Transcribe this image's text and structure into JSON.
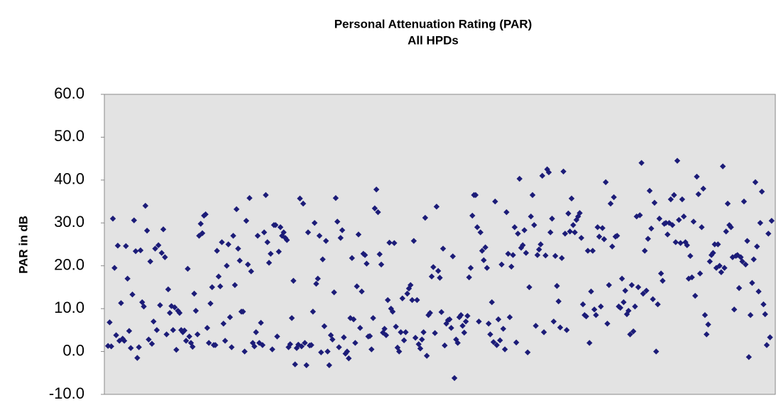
{
  "chart_data": {
    "type": "scatter",
    "title": "Personal Attenuation Rating (PAR)",
    "subtitle": "All HPDs",
    "ylabel": "PAR in dB",
    "color": "#1c1c78",
    "ylim": [
      -10,
      60
    ],
    "yticks": [
      {
        "value": -10,
        "label": "-10.0"
      },
      {
        "value": 0,
        "label": "0.0"
      },
      {
        "value": 10,
        "label": "10.0"
      },
      {
        "value": 20,
        "label": "20.0"
      },
      {
        "value": 30,
        "label": "30.0"
      },
      {
        "value": 40,
        "label": "40.0"
      },
      {
        "value": 50,
        "label": "50.0"
      },
      {
        "value": 60,
        "label": "60.0"
      }
    ],
    "values": [
      1.3,
      6.8,
      1.2,
      31,
      19.5,
      3.8,
      24.7,
      2.5,
      11.3,
      3,
      2.5,
      24.6,
      17,
      4.8,
      0.8,
      13.3,
      30.6,
      23.4,
      -1.5,
      1,
      23.6,
      11.5,
      10.5,
      34,
      28.2,
      2.8,
      21,
      1.8,
      7,
      24,
      5,
      24.8,
      10.8,
      23,
      28.5,
      22,
      4,
      14.5,
      9,
      10.6,
      5,
      10.3,
      0.4,
      9.5,
      9,
      5,
      4.5,
      4.9,
      2.5,
      19.3,
      3.5,
      2,
      1.1,
      13.5,
      9.5,
      4,
      27,
      29.8,
      27.6,
      31.7,
      32,
      5.5,
      2,
      11.2,
      15,
      1.5,
      1.5,
      23.5,
      17.5,
      15.2,
      25.5,
      6.5,
      2.5,
      20,
      25,
      8,
      1,
      27,
      15.5,
      33.2,
      24,
      21.2,
      9.3,
      9.3,
      0,
      30.5,
      20.3,
      35.8,
      18.7,
      2,
      1.2,
      4.5,
      27,
      2,
      6.7,
      1.5,
      27.8,
      36.5,
      25.5,
      20.7,
      22.8,
      0.5,
      29.5,
      29.5,
      3.5,
      23.3,
      29,
      27,
      27.8,
      26.5,
      26,
      1,
      1.7,
      7.8,
      16.5,
      -3,
      0.8,
      1.6,
      35.7,
      1.2,
      34.5,
      2,
      -3.2,
      27.8,
      1.4,
      1.5,
      9.3,
      30,
      15.8,
      17,
      27,
      -0.2,
      21.5,
      5.9,
      25.8,
      0,
      -3.2,
      3.8,
      2.8,
      13.8,
      35.8,
      30.3,
      1,
      26.5,
      28.3,
      3.3,
      -0.5,
      0,
      -1.6,
      7.8,
      21.8,
      7.5,
      2,
      15.2,
      27.3,
      5.5,
      14,
      22.8,
      22.5,
      20.5,
      3.5,
      3.6,
      0.5,
      7.8,
      33.4,
      37.8,
      32.5,
      22.7,
      20.3,
      4.4,
      5.3,
      3.8,
      12,
      25.4,
      10,
      9.3,
      25.3,
      5.8,
      0.9,
      0,
      4.5,
      12.4,
      2.6,
      4.5,
      13.5,
      14.7,
      15.5,
      12,
      25.8,
      3.2,
      12,
      1.7,
      0.7,
      2.8,
      4.5,
      31.2,
      -1,
      8.5,
      9,
      17.5,
      19.7,
      4.3,
      33.8,
      18.8,
      17.2,
      9.2,
      24,
      1.4,
      6.5,
      7.3,
      7.5,
      5.5,
      22.2,
      -6.2,
      2.8,
      2,
      8,
      8.5,
      6,
      4.4,
      7,
      8.3,
      17.3,
      19.5,
      31.7,
      36.5,
      36.5,
      29,
      7,
      27.8,
      23.5,
      21.3,
      24.3,
      19.5,
      6.5,
      4,
      11.5,
      2.2,
      35,
      1.5,
      7.5,
      2.6,
      20.3,
      5.3,
      0.5,
      32.5,
      22.8,
      8,
      19.8,
      22.5,
      29,
      2.1,
      27.5,
      40.3,
      24.2,
      24.8,
      28.3,
      23,
      -0.2,
      15,
      31.5,
      36.5,
      29.5,
      6,
      22.5,
      23.8,
      25,
      41,
      4.5,
      22.4,
      42.5,
      41.8,
      27.8,
      31,
      7,
      22.3,
      15.3,
      11.7,
      5.6,
      21.8,
      42,
      27.5,
      5,
      32.2,
      28,
      35.7,
      29.5,
      27.8,
      30.7,
      31.5,
      32.3,
      26.5,
      11,
      8.5,
      8.2,
      23.5,
      2,
      14,
      23.5,
      9.8,
      8.5,
      29,
      26.8,
      10.5,
      28.8,
      26.2,
      39.5,
      6.5,
      15.5,
      34.5,
      24.5,
      36,
      26.8,
      27,
      10.5,
      10.2,
      17,
      11.5,
      14.2,
      8.7,
      9.5,
      4,
      15.5,
      4.7,
      10.5,
      31.5,
      15,
      31.8,
      44,
      13.5,
      23.5,
      14.2,
      26.3,
      37.5,
      28.7,
      12.2,
      34.7,
      0,
      11,
      31,
      18.2,
      16.5,
      29.8,
      30,
      27.3,
      30,
      35.5,
      29.5,
      36.5,
      25.5,
      44.5,
      30.7,
      25.3,
      35.5,
      31.5,
      25.5,
      24.8,
      17,
      22.3,
      17.3,
      30.3,
      13,
      40.8,
      36.7,
      18.2,
      29,
      38,
      8.5,
      4,
      6.3,
      21,
      22.5,
      23,
      25,
      19.5,
      25,
      20,
      18.5,
      43.2,
      19.5,
      28,
      34.5,
      29.5,
      29,
      22,
      9.8,
      22.3,
      22.5,
      14.8,
      22,
      21,
      35,
      20.3,
      25.8,
      -1.3,
      8.5,
      16,
      21.5,
      39.5,
      24.5,
      14,
      30,
      37.3,
      11,
      8.7,
      1.5,
      27.5,
      3.3,
      30.5
    ]
  }
}
